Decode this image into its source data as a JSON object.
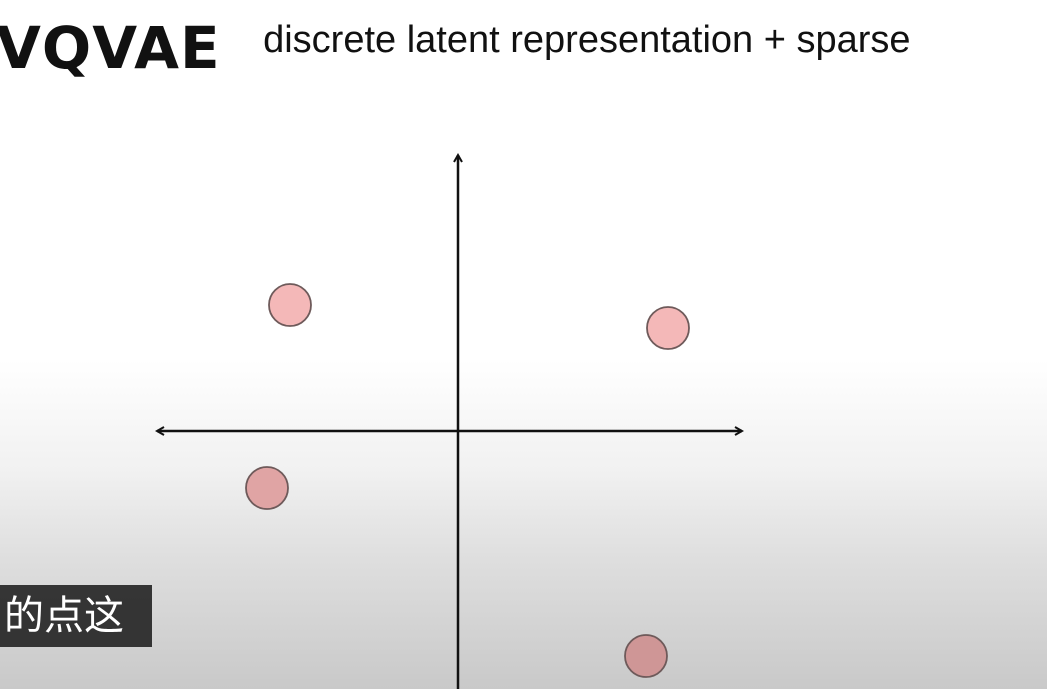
{
  "slide": {
    "title": "VQVAE",
    "subtitle": "discrete latent representation  + sparse"
  },
  "caption": {
    "text": "的点这"
  },
  "points": [
    {
      "name": "point-upper-left",
      "fill": "#f4b8b8"
    },
    {
      "name": "point-upper-right",
      "fill": "#f4b8b8"
    },
    {
      "name": "point-lower-left",
      "fill": "#e0a4a4"
    },
    {
      "name": "point-bottom",
      "fill": "#cf9696"
    }
  ],
  "colors": {
    "axis": "#111111",
    "point_stroke": "#6e5a5a"
  }
}
